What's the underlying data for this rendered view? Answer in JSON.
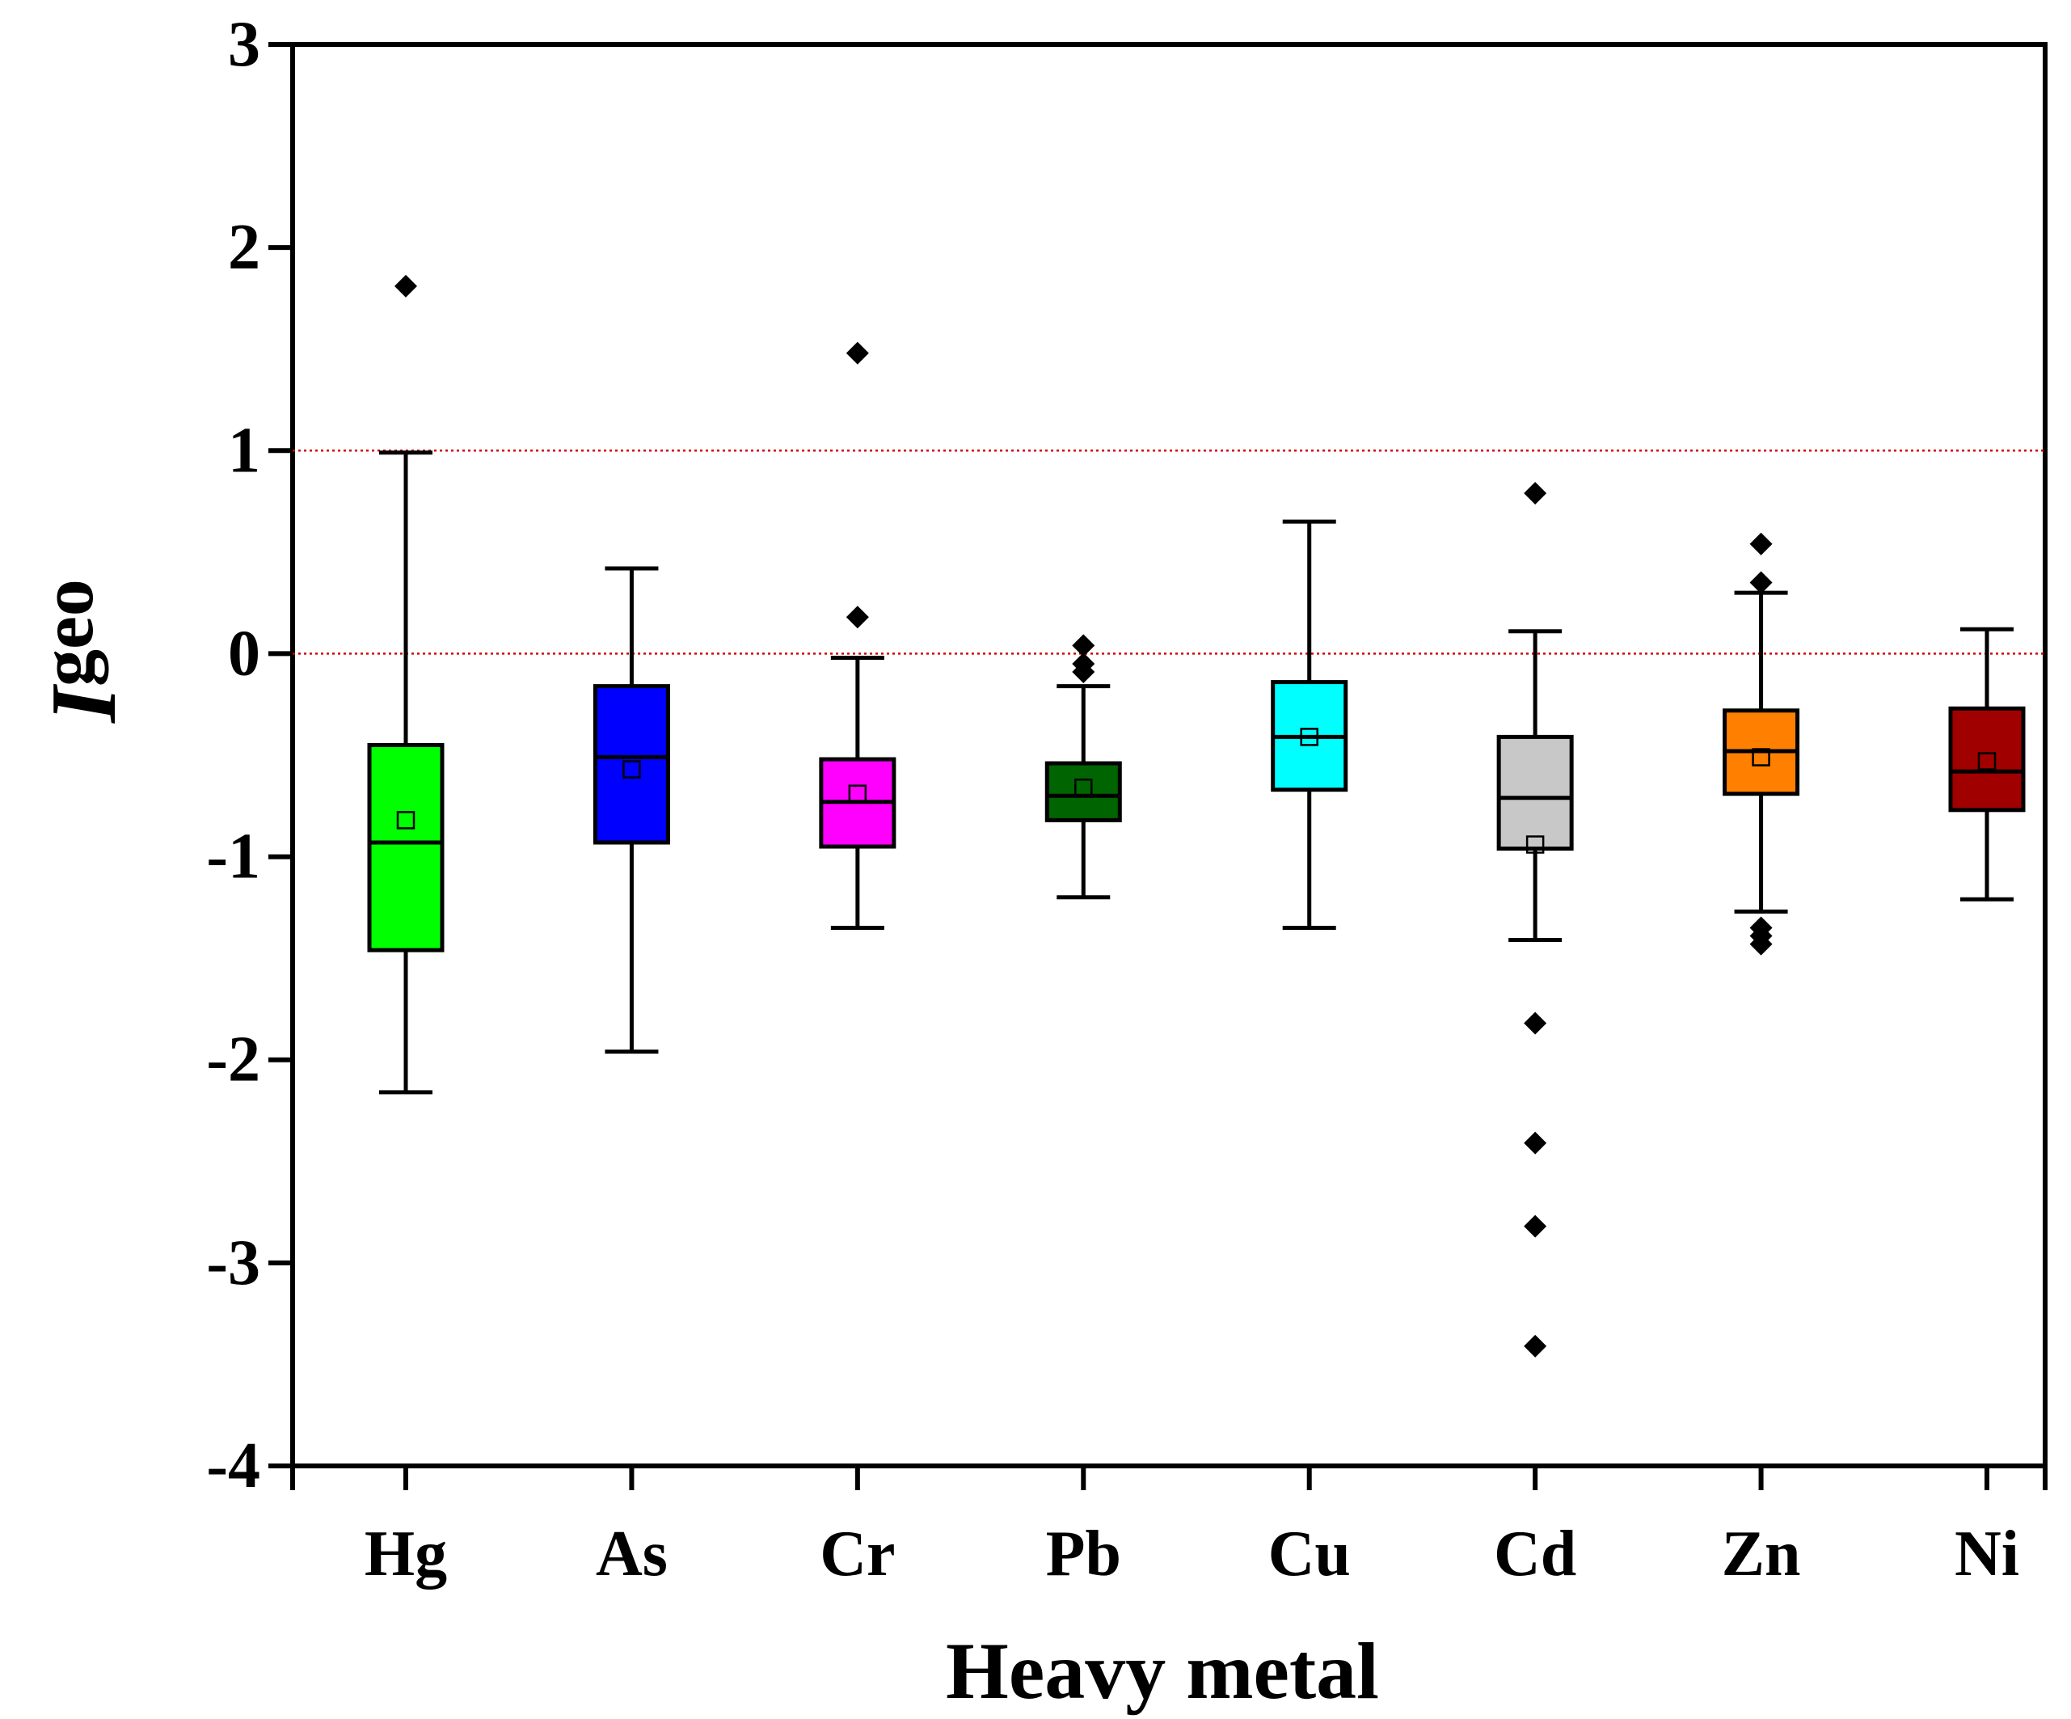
{
  "chart_data": {
    "type": "box",
    "title": "",
    "xlabel": "Heavy metal",
    "ylabel": {
      "main": "I",
      "subscript": "geo"
    },
    "ylim": [
      -4,
      3
    ],
    "yticks": [
      3,
      2,
      1,
      0,
      -1,
      -2,
      -3,
      -4
    ],
    "ytick_labels": [
      "3",
      "2",
      "1",
      "0",
      "-1",
      "-2",
      "-3",
      "-4"
    ],
    "grid": false,
    "reference_lines": [
      {
        "value": 1,
        "color": "#d00000",
        "style": "dotted"
      },
      {
        "value": 0,
        "color": "#d00000",
        "style": "dotted"
      }
    ],
    "categories": [
      "Hg",
      "As",
      "Cr",
      "Pb",
      "Cu",
      "Cd",
      "Zn",
      "Ni"
    ],
    "series": [
      {
        "name": "Hg",
        "color": "#00ff00",
        "whisker_low": -2.16,
        "q1": -1.46,
        "median": -0.93,
        "q3": -0.45,
        "whisker_high": 0.99,
        "mean": -0.82,
        "outliers": [
          1.81
        ]
      },
      {
        "name": "As",
        "color": "#0000ff",
        "whisker_low": -1.96,
        "q1": -0.93,
        "median": -0.51,
        "q3": -0.16,
        "whisker_high": 0.42,
        "mean": -0.57,
        "outliers": []
      },
      {
        "name": "Cr",
        "color": "#ff00ff",
        "whisker_low": -1.35,
        "q1": -0.95,
        "median": -0.73,
        "q3": -0.52,
        "whisker_high": -0.02,
        "mean": -0.69,
        "outliers": [
          1.48,
          0.18
        ]
      },
      {
        "name": "Pb",
        "color": "#006400",
        "whisker_low": -1.2,
        "q1": -0.82,
        "median": -0.7,
        "q3": -0.54,
        "whisker_high": -0.16,
        "mean": -0.66,
        "outliers": [
          0.04,
          -0.05,
          -0.09
        ]
      },
      {
        "name": "Cu",
        "color": "#00ffff",
        "whisker_low": -1.35,
        "q1": -0.67,
        "median": -0.41,
        "q3": -0.14,
        "whisker_high": 0.65,
        "mean": -0.41,
        "outliers": []
      },
      {
        "name": "Cd",
        "color": "#c8c8c8",
        "whisker_low": -1.41,
        "q1": -0.96,
        "median": -0.71,
        "q3": -0.41,
        "whisker_high": 0.11,
        "mean": -0.94,
        "outliers": [
          0.79,
          -1.82,
          -2.41,
          -2.82,
          -3.41
        ]
      },
      {
        "name": "Zn",
        "color": "#ff8000",
        "whisker_low": -1.27,
        "q1": -0.69,
        "median": -0.48,
        "q3": -0.28,
        "whisker_high": 0.3,
        "mean": -0.51,
        "outliers": [
          0.54,
          0.35,
          -1.35,
          -1.39,
          -1.43
        ]
      },
      {
        "name": "Ni",
        "color": "#a00000",
        "whisker_low": -1.21,
        "q1": -0.77,
        "median": -0.58,
        "q3": -0.27,
        "whisker_high": 0.12,
        "mean": -0.53,
        "outliers": []
      }
    ]
  }
}
